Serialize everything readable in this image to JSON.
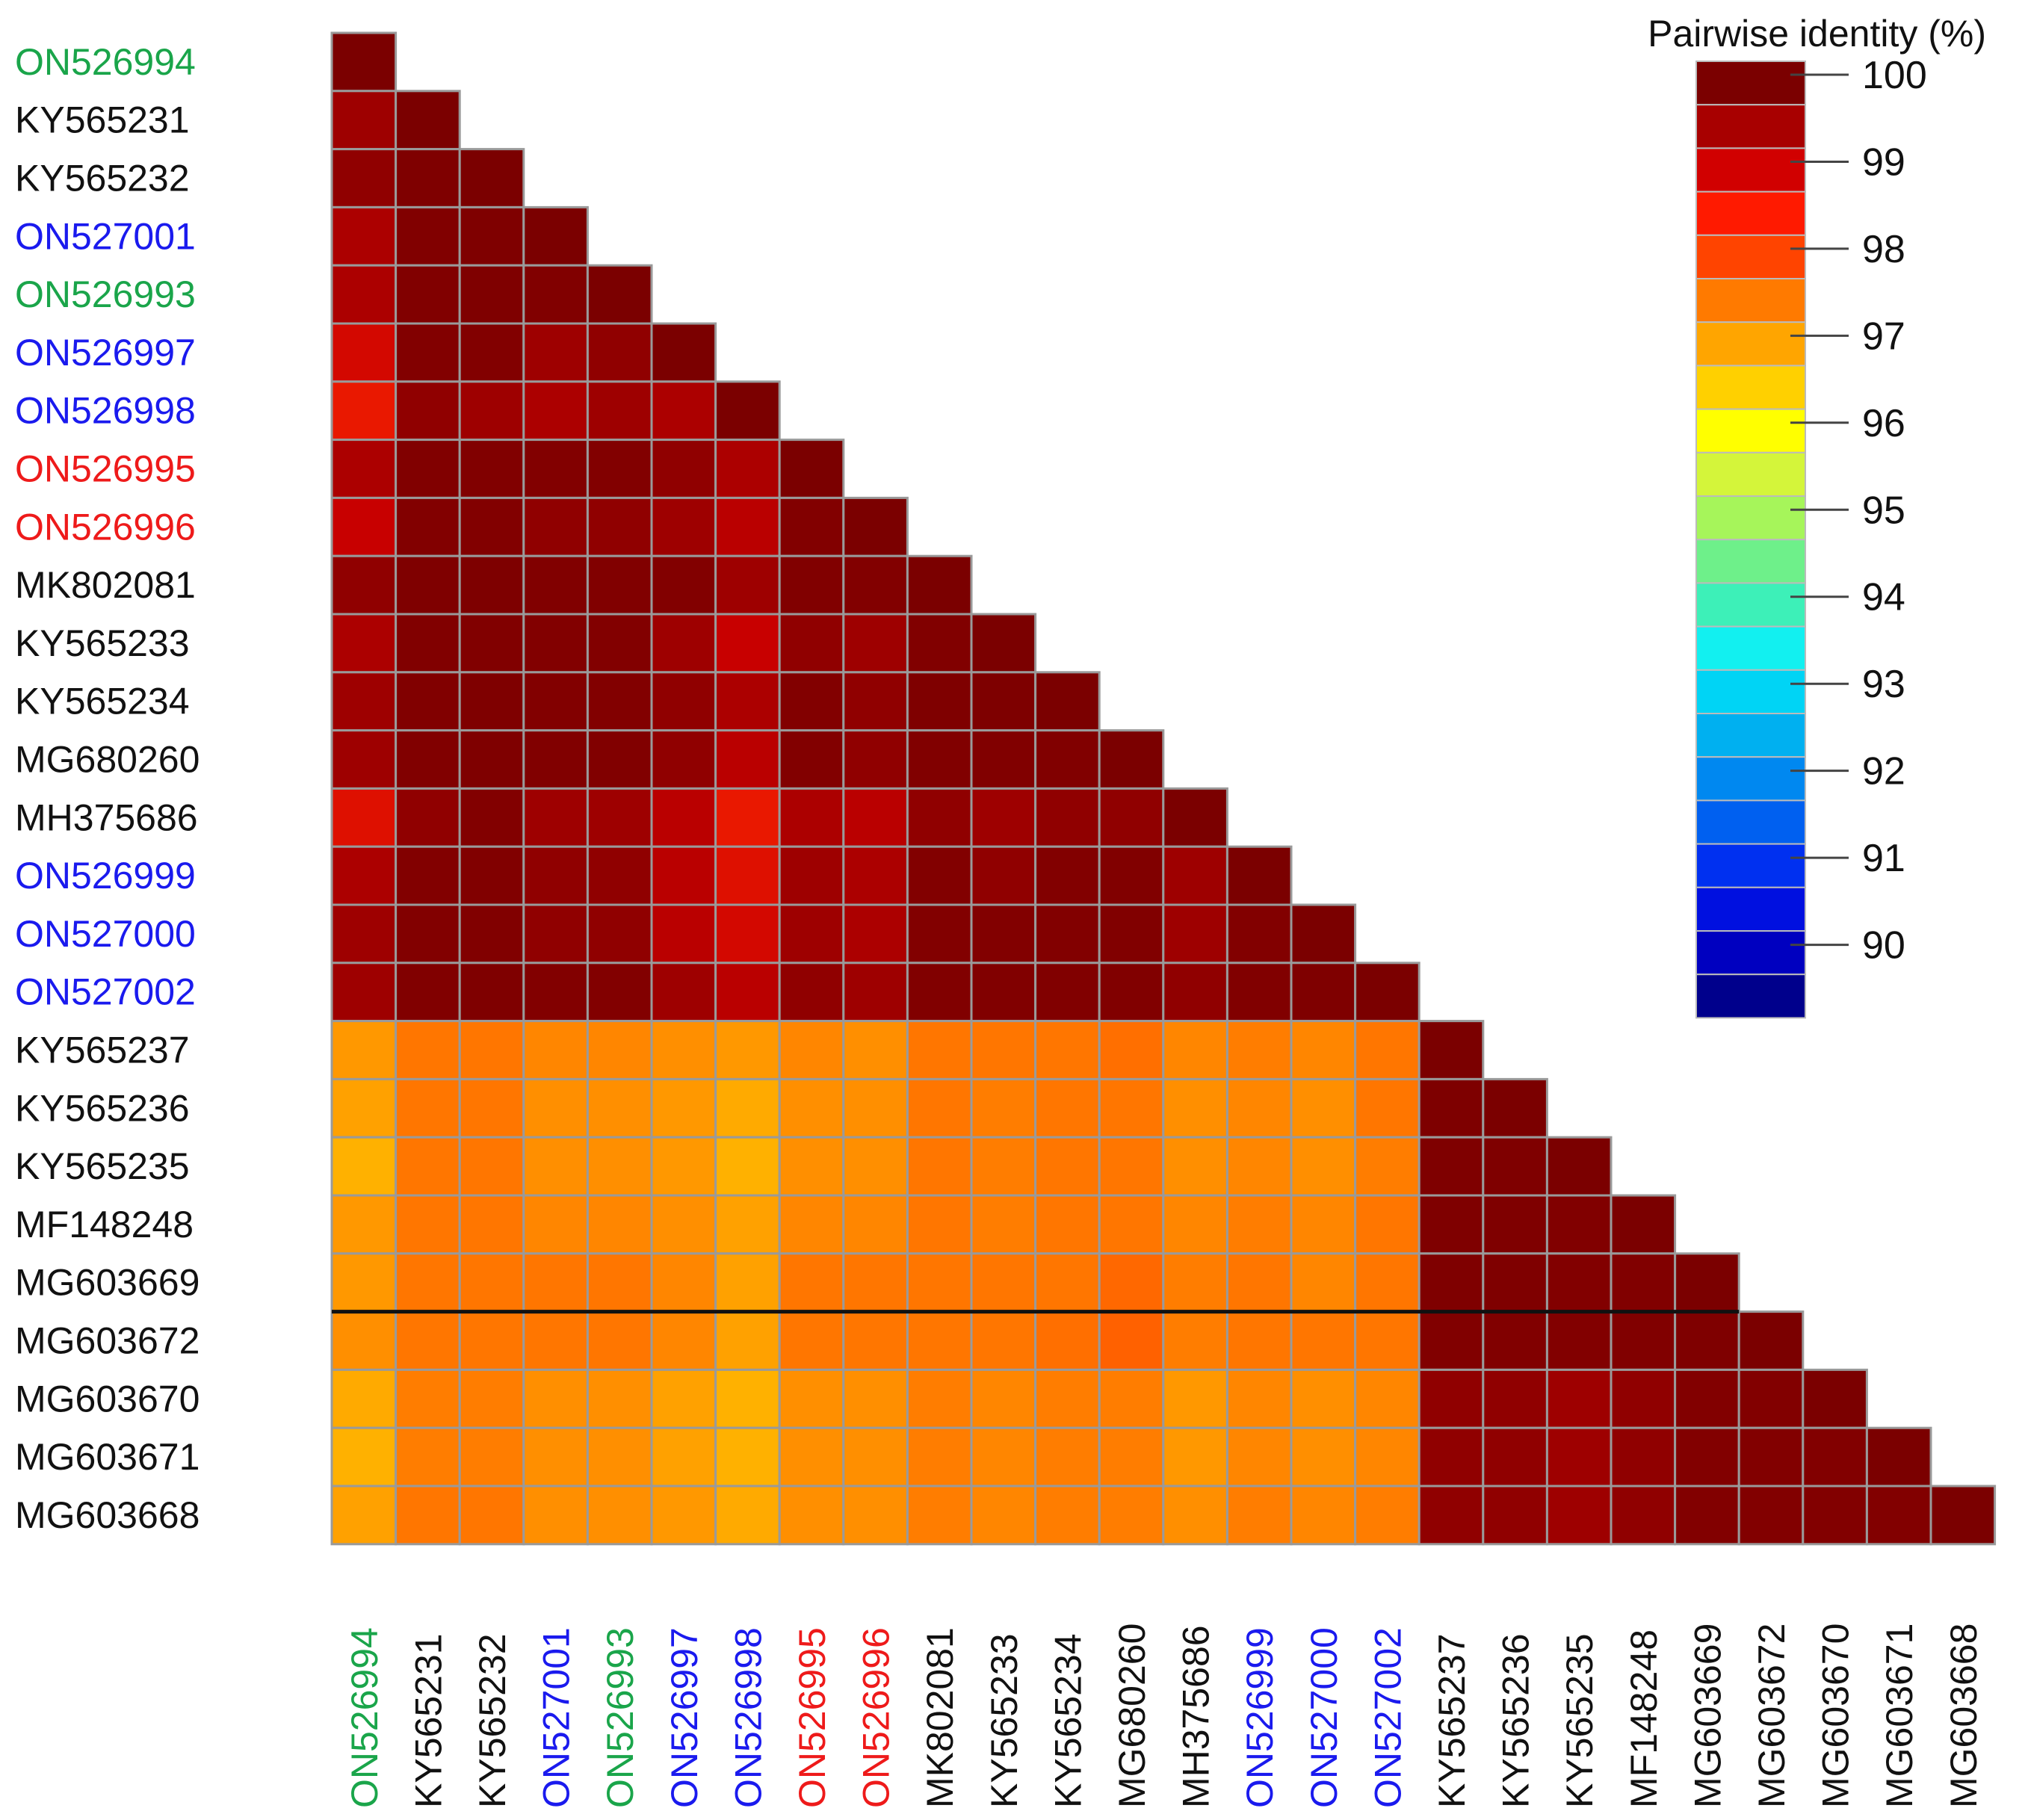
{
  "chart_data": {
    "type": "heatmap",
    "subtype": "lower-triangular pairwise identity matrix",
    "legend": {
      "title": "Pairwise identity (%)",
      "ticks": [
        100,
        99,
        98,
        97,
        96,
        95,
        94,
        93,
        92,
        91,
        90
      ],
      "range": [
        89.5,
        100
      ],
      "colors": [
        "#7b0000",
        "#a80000",
        "#d10000",
        "#ff1a00",
        "#ff4400",
        "#ff7a00",
        "#ffa500",
        "#ffd000",
        "#ffff00",
        "#d4f53a",
        "#a6f55a",
        "#6ef08a",
        "#3df0b8",
        "#12f0f0",
        "#00d4f5",
        "#00b0f0",
        "#0088f0",
        "#0060f0",
        "#0030f0",
        "#0010e0",
        "#0000c0",
        "#00008c"
      ]
    },
    "labels": [
      "ON526994",
      "KY565231",
      "KY565232",
      "ON527001",
      "ON526993",
      "ON526997",
      "ON526998",
      "ON526995",
      "ON526996",
      "MK802081",
      "KY565233",
      "KY565234",
      "MG680260",
      "MH375686",
      "ON526999",
      "ON527000",
      "ON527002",
      "KY565237",
      "KY565236",
      "KY565235",
      "MF148248",
      "MG603669",
      "MG603672",
      "MG603670",
      "MG603671",
      "MG603668"
    ],
    "label_colors": [
      "#1aa54a",
      "#111111",
      "#111111",
      "#1a1aee",
      "#1aa54a",
      "#1a1aee",
      "#1a1aee",
      "#ee1a1a",
      "#ee1a1a",
      "#111111",
      "#111111",
      "#111111",
      "#111111",
      "#111111",
      "#1a1aee",
      "#1a1aee",
      "#1a1aee",
      "#111111",
      "#111111",
      "#111111",
      "#111111",
      "#111111",
      "#111111",
      "#111111",
      "#111111",
      "#111111"
    ],
    "values": [
      [
        100
      ],
      [
        99.3,
        100
      ],
      [
        99.4,
        99.7,
        100
      ],
      [
        99.2,
        99.6,
        99.7,
        100
      ],
      [
        99.2,
        99.6,
        99.7,
        99.6,
        100
      ],
      [
        98.9,
        99.5,
        99.5,
        99.3,
        99.4,
        100
      ],
      [
        98.7,
        99.4,
        99.3,
        99.2,
        99.3,
        99.2,
        100
      ],
      [
        99.2,
        99.6,
        99.6,
        99.5,
        99.5,
        99.4,
        99.2,
        100
      ],
      [
        99.0,
        99.5,
        99.5,
        99.4,
        99.4,
        99.3,
        99.1,
        99.5,
        100
      ],
      [
        99.4,
        99.7,
        99.8,
        99.6,
        99.6,
        99.5,
        99.3,
        99.6,
        99.5,
        100
      ],
      [
        99.2,
        99.6,
        99.6,
        99.5,
        99.5,
        99.3,
        99.0,
        99.4,
        99.3,
        99.6,
        100
      ],
      [
        99.3,
        99.6,
        99.7,
        99.5,
        99.5,
        99.4,
        99.2,
        99.5,
        99.4,
        99.7,
        99.8,
        100
      ],
      [
        99.3,
        99.6,
        99.7,
        99.6,
        99.6,
        99.4,
        99.1,
        99.5,
        99.4,
        99.6,
        99.6,
        99.6,
        100
      ],
      [
        98.8,
        99.4,
        99.5,
        99.3,
        99.3,
        99.1,
        98.7,
        99.2,
        99.1,
        99.4,
        99.3,
        99.4,
        99.4,
        100
      ],
      [
        99.2,
        99.5,
        99.6,
        99.4,
        99.4,
        99.1,
        98.8,
        99.3,
        99.2,
        99.5,
        99.4,
        99.5,
        99.6,
        99.3,
        100
      ],
      [
        99.3,
        99.5,
        99.6,
        99.4,
        99.4,
        99.1,
        98.9,
        99.3,
        99.2,
        99.5,
        99.5,
        99.5,
        99.6,
        99.3,
        99.5,
        100
      ],
      [
        99.3,
        99.6,
        99.7,
        99.5,
        99.5,
        99.3,
        99.1,
        99.4,
        99.3,
        99.6,
        99.6,
        99.6,
        99.6,
        99.4,
        99.6,
        99.7,
        100
      ],
      [
        97.2,
        97.6,
        97.6,
        97.4,
        97.4,
        97.3,
        97.2,
        97.4,
        97.3,
        97.6,
        97.6,
        97.6,
        97.7,
        97.4,
        97.5,
        97.4,
        97.6,
        100
      ],
      [
        97.1,
        97.6,
        97.6,
        97.3,
        97.3,
        97.2,
        97.0,
        97.3,
        97.3,
        97.6,
        97.5,
        97.6,
        97.6,
        97.3,
        97.4,
        97.3,
        97.6,
        99.8,
        100
      ],
      [
        96.9,
        97.6,
        97.6,
        97.3,
        97.3,
        97.2,
        96.9,
        97.3,
        97.3,
        97.6,
        97.5,
        97.6,
        97.6,
        97.3,
        97.4,
        97.3,
        97.5,
        99.7,
        99.7,
        100
      ],
      [
        97.2,
        97.6,
        97.6,
        97.4,
        97.4,
        97.3,
        97.1,
        97.4,
        97.4,
        97.6,
        97.5,
        97.6,
        97.6,
        97.4,
        97.5,
        97.4,
        97.6,
        99.7,
        99.7,
        99.6,
        100
      ],
      [
        97.2,
        97.6,
        97.6,
        97.6,
        97.6,
        97.4,
        97.1,
        97.6,
        97.6,
        97.6,
        97.6,
        97.6,
        97.8,
        97.5,
        97.6,
        97.4,
        97.6,
        99.7,
        99.7,
        99.5,
        99.6,
        100
      ],
      [
        97.3,
        97.6,
        97.6,
        97.6,
        97.6,
        97.4,
        97.1,
        97.6,
        97.6,
        97.6,
        97.6,
        97.7,
        97.9,
        97.5,
        97.6,
        97.6,
        97.6,
        99.6,
        99.6,
        99.5,
        99.6,
        99.7,
        100
      ],
      [
        97.0,
        97.5,
        97.5,
        97.3,
        97.3,
        97.1,
        96.9,
        97.3,
        97.3,
        97.5,
        97.4,
        97.5,
        97.5,
        97.2,
        97.4,
        97.3,
        97.4,
        99.4,
        99.4,
        99.3,
        99.4,
        99.5,
        99.5,
        100
      ],
      [
        96.9,
        97.5,
        97.5,
        97.3,
        97.3,
        97.1,
        96.9,
        97.3,
        97.3,
        97.5,
        97.4,
        97.5,
        97.5,
        97.2,
        97.4,
        97.3,
        97.4,
        99.4,
        99.4,
        99.3,
        99.4,
        99.5,
        99.5,
        99.5,
        100
      ],
      [
        97.1,
        97.6,
        97.6,
        97.3,
        97.3,
        97.2,
        97.0,
        97.3,
        97.3,
        97.5,
        97.4,
        97.5,
        97.5,
        97.3,
        97.5,
        97.4,
        97.5,
        99.4,
        99.4,
        99.3,
        99.4,
        99.5,
        99.5,
        99.5,
        99.5,
        100
      ]
    ]
  }
}
